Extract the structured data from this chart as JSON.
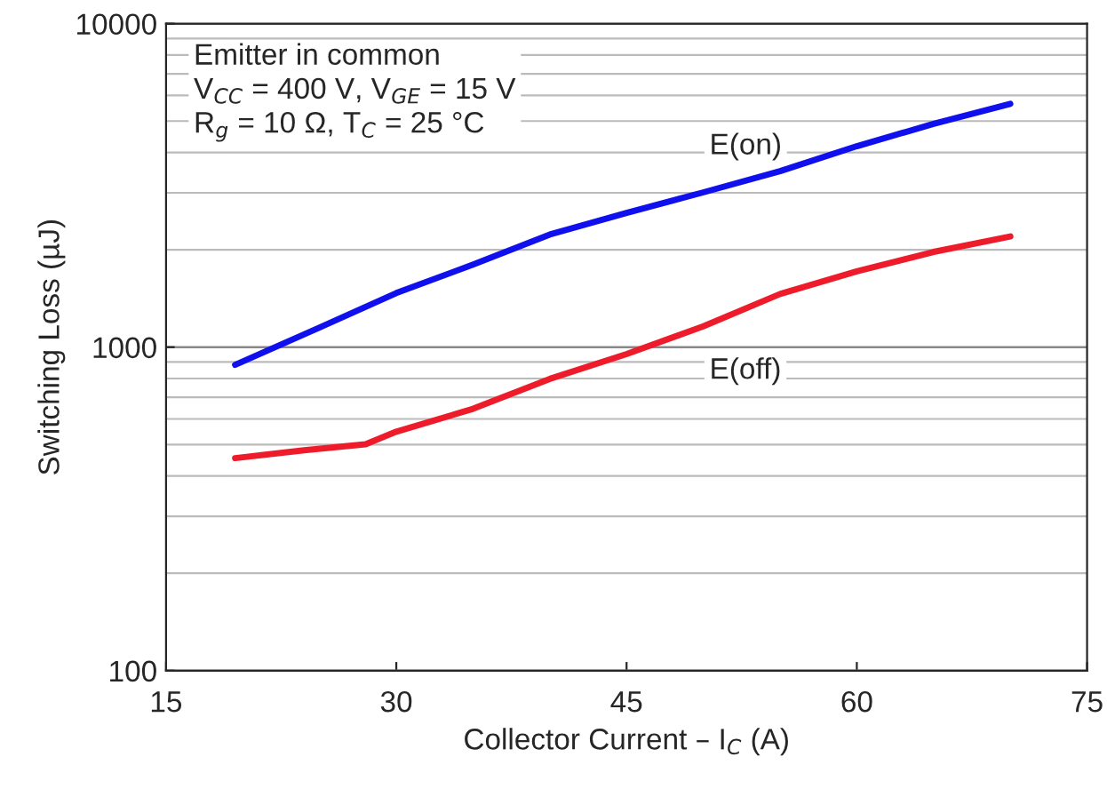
{
  "chart_data": {
    "type": "line",
    "xlabel": "Collector Current – I$_{C}$ (A)",
    "ylabel": "Switching Loss (µJ)",
    "xlim": [
      15,
      75
    ],
    "xticks": [
      15,
      30,
      45,
      60,
      75
    ],
    "ylim": [
      100,
      10000
    ],
    "yticks": [
      100,
      1000,
      10000
    ],
    "log": "y",
    "grid": "y",
    "legend": false,
    "series": [
      {
        "color": "#1010ee",
        "x": [
          19.5,
          25,
          30,
          35,
          40,
          45,
          50,
          55,
          60,
          65,
          70
        ],
        "values": [
          882,
          1150,
          1470,
          1800,
          2230,
          2600,
          3010,
          3500,
          4180,
          4900,
          5650
        ]
      },
      {
        "color": "#ee1c2a",
        "x": [
          19.5,
          24,
          28,
          30,
          35,
          40,
          45,
          50,
          55,
          60,
          65,
          70
        ],
        "values": [
          454,
          480,
          501,
          548,
          645,
          798,
          952,
          1160,
          1460,
          1715,
          1970,
          2200
        ]
      }
    ],
    "annotations": [
      "E(on)",
      "E(off)",
      "Emitter in common\nV$_{CC}$ = 400 V, V$_{GE}$ = 15 V\nR$_{g}$ = 10 Ω, T$_{C}$ = 25 °C"
    ]
  }
}
